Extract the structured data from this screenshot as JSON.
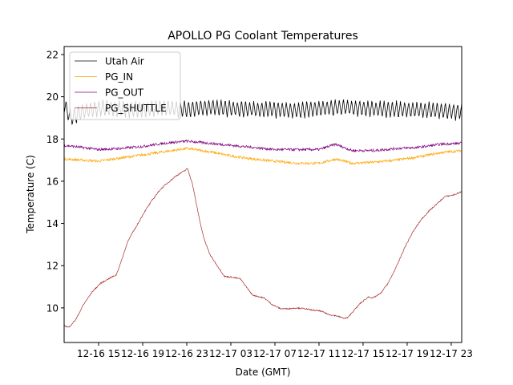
{
  "chart_data": {
    "type": "line",
    "title": "APOLLO PG Coolant Temperatures",
    "xlabel": "Date (GMT)",
    "ylabel": "Temperature (C)",
    "x_units": "hours since 12-16 00:00 GMT",
    "xlim": [
      11.87,
      47.95
    ],
    "ylim": [
      8.36,
      22.38
    ],
    "grid": false,
    "legend_position": "top-left",
    "x_ticks": [
      {
        "value": 15,
        "label": "12-16 15"
      },
      {
        "value": 19,
        "label": "12-16 19"
      },
      {
        "value": 23,
        "label": "12-16 23"
      },
      {
        "value": 27,
        "label": "12-17 03"
      },
      {
        "value": 31,
        "label": "12-17 07"
      },
      {
        "value": 35,
        "label": "12-17 11"
      },
      {
        "value": 39,
        "label": "12-17 15"
      },
      {
        "value": 43,
        "label": "12-17 19"
      },
      {
        "value": 47,
        "label": "12-17 23"
      }
    ],
    "y_ticks": [
      {
        "value": 10,
        "label": "10"
      },
      {
        "value": 12,
        "label": "12"
      },
      {
        "value": 14,
        "label": "14"
      },
      {
        "value": 16,
        "label": "16"
      },
      {
        "value": 18,
        "label": "18"
      },
      {
        "value": 20,
        "label": "20"
      },
      {
        "value": 22,
        "label": "22"
      }
    ],
    "series": [
      {
        "name": "Utah Air",
        "color": "#000000",
        "note": "sawtooth oscillation ~19.0–19.85 C, period ~0.37 h",
        "oscillation": {
          "mean": 19.4,
          "amplitude": 0.38,
          "period_hours": 0.37
        },
        "points": [
          [
            11.87,
            19.6
          ],
          [
            12.5,
            19.0
          ],
          [
            13.5,
            19.3
          ],
          [
            15.0,
            19.45
          ],
          [
            17.0,
            19.4
          ],
          [
            19.0,
            19.4
          ],
          [
            21.0,
            19.45
          ],
          [
            23.0,
            19.4
          ],
          [
            25.0,
            19.5
          ],
          [
            27.0,
            19.45
          ],
          [
            29.0,
            19.4
          ],
          [
            31.0,
            19.4
          ],
          [
            33.0,
            19.35
          ],
          [
            35.0,
            19.45
          ],
          [
            37.0,
            19.5
          ],
          [
            39.0,
            19.45
          ],
          [
            41.0,
            19.4
          ],
          [
            43.0,
            19.4
          ],
          [
            45.0,
            19.35
          ],
          [
            47.95,
            19.3
          ]
        ]
      },
      {
        "name": "PG_IN",
        "color": "#ffa500",
        "points": [
          [
            11.87,
            17.05
          ],
          [
            13.5,
            17.0
          ],
          [
            15.0,
            16.95
          ],
          [
            17.0,
            17.1
          ],
          [
            19.0,
            17.25
          ],
          [
            21.0,
            17.4
          ],
          [
            23.0,
            17.55
          ],
          [
            25.0,
            17.4
          ],
          [
            27.0,
            17.2
          ],
          [
            29.0,
            17.05
          ],
          [
            31.0,
            16.95
          ],
          [
            33.0,
            16.85
          ],
          [
            35.0,
            16.85
          ],
          [
            36.5,
            17.05
          ],
          [
            38.0,
            16.85
          ],
          [
            40.0,
            16.9
          ],
          [
            42.0,
            17.0
          ],
          [
            44.0,
            17.15
          ],
          [
            46.0,
            17.35
          ],
          [
            47.95,
            17.45
          ]
        ]
      },
      {
        "name": "PG_OUT",
        "color": "#800080",
        "points": [
          [
            11.87,
            17.7
          ],
          [
            13.5,
            17.6
          ],
          [
            15.0,
            17.5
          ],
          [
            17.0,
            17.55
          ],
          [
            19.0,
            17.65
          ],
          [
            21.0,
            17.8
          ],
          [
            23.0,
            17.9
          ],
          [
            25.0,
            17.8
          ],
          [
            27.0,
            17.7
          ],
          [
            29.0,
            17.6
          ],
          [
            31.0,
            17.5
          ],
          [
            33.0,
            17.5
          ],
          [
            35.0,
            17.5
          ],
          [
            36.5,
            17.75
          ],
          [
            38.0,
            17.45
          ],
          [
            40.0,
            17.45
          ],
          [
            42.0,
            17.55
          ],
          [
            44.0,
            17.6
          ],
          [
            46.0,
            17.75
          ],
          [
            47.95,
            17.8
          ]
        ]
      },
      {
        "name": "PG_SHUTTLE",
        "color": "#a52a2a",
        "points": [
          [
            11.87,
            9.16
          ],
          [
            12.31,
            9.08
          ],
          [
            12.96,
            9.47
          ],
          [
            13.62,
            10.15
          ],
          [
            14.42,
            10.76
          ],
          [
            15.15,
            11.15
          ],
          [
            15.87,
            11.37
          ],
          [
            16.6,
            11.56
          ],
          [
            16.96,
            12.06
          ],
          [
            17.69,
            13.21
          ],
          [
            18.42,
            13.85
          ],
          [
            19.15,
            14.54
          ],
          [
            19.87,
            15.11
          ],
          [
            20.6,
            15.61
          ],
          [
            21.33,
            15.95
          ],
          [
            22.05,
            16.26
          ],
          [
            22.78,
            16.49
          ],
          [
            23.07,
            16.6
          ],
          [
            23.51,
            15.88
          ],
          [
            23.87,
            14.92
          ],
          [
            24.24,
            13.97
          ],
          [
            24.6,
            13.21
          ],
          [
            25.11,
            12.52
          ],
          [
            25.69,
            12.06
          ],
          [
            26.42,
            11.49
          ],
          [
            27.15,
            11.45
          ],
          [
            27.87,
            11.37
          ],
          [
            28.24,
            11.11
          ],
          [
            28.96,
            10.61
          ],
          [
            30.05,
            10.46
          ],
          [
            30.78,
            10.15
          ],
          [
            31.51,
            9.96
          ],
          [
            32.24,
            9.96
          ],
          [
            32.96,
            10.0
          ],
          [
            33.69,
            9.96
          ],
          [
            34.42,
            9.89
          ],
          [
            35.15,
            9.85
          ],
          [
            35.87,
            9.69
          ],
          [
            36.6,
            9.62
          ],
          [
            37.33,
            9.5
          ],
          [
            37.62,
            9.54
          ],
          [
            38.05,
            9.81
          ],
          [
            38.78,
            10.23
          ],
          [
            39.51,
            10.53
          ],
          [
            39.87,
            10.46
          ],
          [
            40.6,
            10.69
          ],
          [
            41.33,
            11.22
          ],
          [
            42.05,
            11.98
          ],
          [
            42.78,
            12.86
          ],
          [
            43.51,
            13.59
          ],
          [
            44.24,
            14.16
          ],
          [
            44.96,
            14.58
          ],
          [
            45.69,
            14.92
          ],
          [
            46.42,
            15.27
          ],
          [
            47.15,
            15.34
          ],
          [
            47.95,
            15.5
          ]
        ]
      }
    ]
  }
}
